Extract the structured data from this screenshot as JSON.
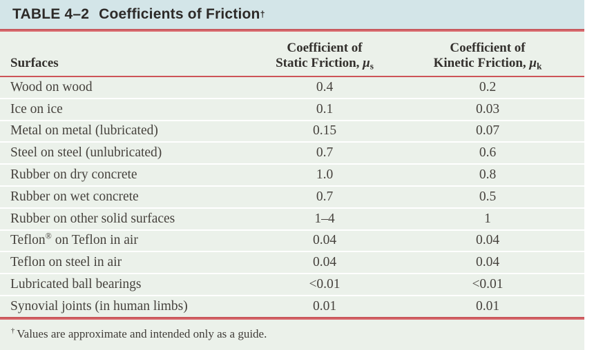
{
  "colors": {
    "title_bar_bg": "#d3e5e8",
    "body_bg": "#ebf1ea",
    "rule_red": "#cd5358",
    "text_dark": "#33302d"
  },
  "table": {
    "title": {
      "label": "TABLE 4–2",
      "text": "Coefficients of Friction",
      "dagger": "†"
    },
    "columns": {
      "surfaces": "Surfaces",
      "static": {
        "line1": "Coefficient of",
        "line2": "Static Friction,",
        "symbol": "μ",
        "sub": "s"
      },
      "kinetic": {
        "line1": "Coefficient of",
        "line2": "Kinetic Friction,",
        "symbol": "μ",
        "sub": "k"
      }
    },
    "rows": [
      {
        "surface": "Wood on wood",
        "static": "0.4",
        "kinetic": "0.2"
      },
      {
        "surface": "Ice on ice",
        "static": "0.1",
        "kinetic": "0.03"
      },
      {
        "surface": "Metal on metal (lubricated)",
        "static": "0.15",
        "kinetic": "0.07"
      },
      {
        "surface": "Steel on steel (unlubricated)",
        "static": "0.7",
        "kinetic": "0.6"
      },
      {
        "surface": "Rubber on dry concrete",
        "static": "1.0",
        "kinetic": "0.8"
      },
      {
        "surface": "Rubber on wet concrete",
        "static": "0.7",
        "kinetic": "0.5"
      },
      {
        "surface": "Rubber on other solid surfaces",
        "static": "1–4",
        "kinetic": "1"
      },
      {
        "surface_pre": "Teflon",
        "surface_sup": "®",
        "surface_post": " on Teflon in air",
        "static": "0.04",
        "kinetic": "0.04"
      },
      {
        "surface": "Teflon on steel in air",
        "static": "0.04",
        "kinetic": "0.04"
      },
      {
        "surface": "Lubricated ball bearings",
        "static": "<0.01",
        "kinetic": "<0.01"
      },
      {
        "surface": "Synovial joints (in human limbs)",
        "static": "0.01",
        "kinetic": "0.01"
      }
    ],
    "footnote": {
      "dagger": "†",
      "text": "Values are approximate and intended only as a guide."
    }
  }
}
